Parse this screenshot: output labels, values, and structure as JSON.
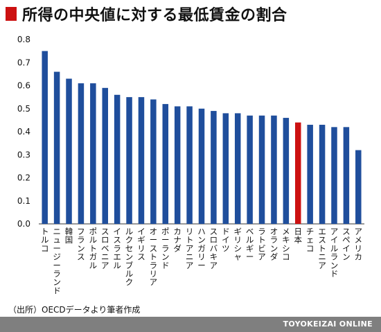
{
  "header": {
    "title": "所得の中央値に対する最低賃金の割合"
  },
  "footer": {
    "source": "（出所）OECDデータより筆者作成",
    "brand": "TOYOKEIZAI ONLINE"
  },
  "colors": {
    "bar": "#1f4e9c",
    "highlight": "#cc1111",
    "footer_bg": "#7f7f7f"
  },
  "chart_data": {
    "type": "bar",
    "title": "所得の中央値に対する最低賃金の割合",
    "xlabel": "",
    "ylabel": "",
    "ylim": [
      0,
      0.8
    ],
    "yticks": [
      "0.0",
      "0.1",
      "0.2",
      "0.3",
      "0.4",
      "0.5",
      "0.6",
      "0.7",
      "0.8"
    ],
    "grid": false,
    "categories": [
      "トルコ",
      "ニュージーランド",
      "韓国",
      "フランス",
      "ポルトガル",
      "スロベニア",
      "イスラエル",
      "ルクセンブルク",
      "イギリス",
      "オーストラリア",
      "ポーランド",
      "カナダ",
      "リトアニア",
      "ハンガリー",
      "スロバキア",
      "ドイツ",
      "ギリシャ",
      "ベルギー",
      "ラトビア",
      "オランダ",
      "メキシコ",
      "日本",
      "チェコ",
      "エストニア",
      "アイルランド",
      "スペイン",
      "アメリカ"
    ],
    "values": [
      0.75,
      0.66,
      0.63,
      0.61,
      0.61,
      0.59,
      0.56,
      0.55,
      0.55,
      0.54,
      0.52,
      0.51,
      0.51,
      0.5,
      0.49,
      0.48,
      0.48,
      0.47,
      0.47,
      0.47,
      0.46,
      0.44,
      0.43,
      0.43,
      0.42,
      0.42,
      0.32
    ],
    "highlight": "日本"
  }
}
